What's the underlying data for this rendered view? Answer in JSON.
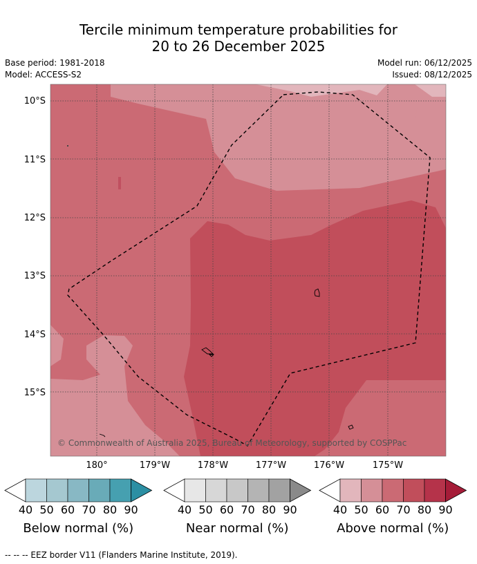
{
  "title": {
    "line1": "Tercile minimum temperature probabilities for",
    "line2": "20 to 26 December 2025"
  },
  "meta": {
    "base_period": "Base period: 1981-2018",
    "model": "Model: ACCESS-S2",
    "model_run": "Model run: 06/12/2025",
    "issued": "Issued: 08/12/2025"
  },
  "map": {
    "lat_labels": [
      "10°S",
      "11°S",
      "12°S",
      "13°S",
      "14°S",
      "15°S"
    ],
    "lon_labels": [
      "180°",
      "179°W",
      "178°W",
      "177°W",
      "176°W",
      "175°W"
    ],
    "copyright": "© Commonwealth of Australia 2025, Bureau of Meteorology, supported by COSPPac",
    "region_legend": "EEZ border V11 (Flanders Marine Institute, 2019)."
  },
  "colors": {
    "above": [
      "#e2b6bc",
      "#d58f97",
      "#cb6a74",
      "#c14e5b",
      "#b5334a",
      "#a51c38"
    ],
    "near": [
      "#e7e7e7",
      "#d7d7d7",
      "#c8c8c8",
      "#b4b4b4",
      "#a2a2a2",
      "#8a8a8a"
    ],
    "below": [
      "#bcd6de",
      "#a5c8d0",
      "#88b8c4",
      "#69abb8",
      "#46a0b0",
      "#2b8fa3"
    ]
  },
  "legends": [
    {
      "key": "below",
      "label": "Below normal (%)",
      "ticks": [
        "40",
        "50",
        "60",
        "70",
        "80",
        "90"
      ]
    },
    {
      "key": "near",
      "label": "Near normal (%)",
      "ticks": [
        "40",
        "50",
        "60",
        "70",
        "80",
        "90"
      ]
    },
    {
      "key": "above",
      "label": "Above normal (%)",
      "ticks": [
        "40",
        "50",
        "60",
        "70",
        "80",
        "90"
      ]
    }
  ],
  "footer": "--  --  -- EEZ border V11 (Flanders Marine Institute, 2019)."
}
